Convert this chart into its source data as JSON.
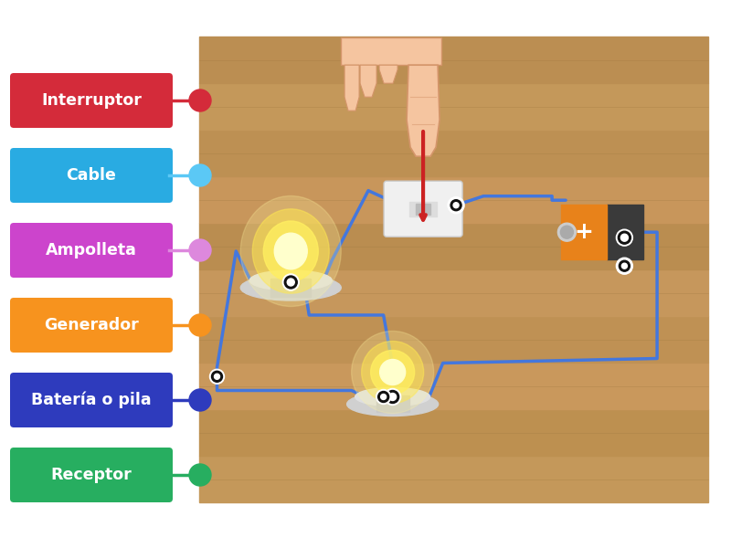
{
  "labels": [
    {
      "text": "Interruptor",
      "color": "#d42b3a",
      "dot_color": "#d42b3a"
    },
    {
      "text": "Cable",
      "color": "#29abe2",
      "dot_color": "#5bc8f5"
    },
    {
      "text": "Ampolleta",
      "color": "#cc44cc",
      "dot_color": "#dd88dd"
    },
    {
      "text": "Generador",
      "color": "#f7931e",
      "dot_color": "#f7931e"
    },
    {
      "text": "Batería o pila",
      "color": "#2e3bbd",
      "dot_color": "#2e3bbd"
    },
    {
      "text": "Receptor",
      "color": "#27ae60",
      "dot_color": "#27ae60"
    }
  ],
  "bg_color": "#ffffff",
  "plank_colors": [
    "#c4985a",
    "#bd9050",
    "#c9985c",
    "#bf9154",
    "#c6975c",
    "#ba8d50",
    "#c8965b",
    "#bd9053",
    "#c4985a",
    "#bb8e52"
  ],
  "cable_color": "#4477dd",
  "cable_lw": 2.0,
  "font_size": 12.5
}
